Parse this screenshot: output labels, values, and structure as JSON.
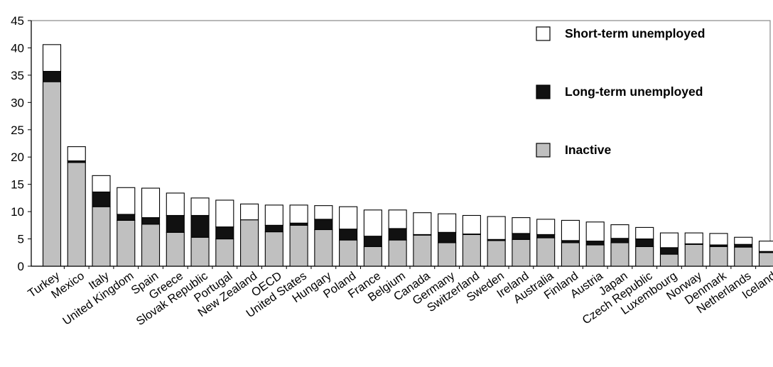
{
  "chart_data": {
    "type": "bar",
    "stacked": true,
    "categories": [
      "Turkey",
      "Mexico",
      "Italy",
      "United Kingdom",
      "Spain",
      "Greece",
      "Slovak Republic",
      "Portugal",
      "New Zealand",
      "OECD",
      "United States",
      "Hungary",
      "Poland",
      "France",
      "Belgium",
      "Canada",
      "Germany",
      "Switzerland",
      "Sweden",
      "Ireland",
      "Australia",
      "Finland",
      "Austria",
      "Japan",
      "Czech Republic",
      "Luxembourg",
      "Norway",
      "Denmark",
      "Netherlands",
      "Iceland"
    ],
    "series": [
      {
        "name": "Inactive",
        "color": "#c0c0c0",
        "values": [
          33.8,
          19.0,
          10.9,
          8.4,
          7.7,
          6.2,
          5.3,
          5.0,
          8.5,
          6.3,
          7.5,
          6.7,
          4.8,
          3.6,
          4.8,
          5.7,
          4.3,
          5.8,
          4.7,
          4.9,
          5.2,
          4.3,
          3.9,
          4.3,
          3.6,
          2.2,
          4.0,
          3.6,
          3.5,
          2.5
        ]
      },
      {
        "name": "Long-term unemployed",
        "color": "#111111",
        "values": [
          1.9,
          0.3,
          2.7,
          1.1,
          1.2,
          3.1,
          4.0,
          2.2,
          0.0,
          1.2,
          0.4,
          1.9,
          2.0,
          1.9,
          2.1,
          0.1,
          1.9,
          0.1,
          0.2,
          1.1,
          0.6,
          0.4,
          0.7,
          0.8,
          1.4,
          1.2,
          0.1,
          0.3,
          0.5,
          0.2
        ]
      },
      {
        "name": "Short-term unemployed",
        "color": "#ffffff",
        "values": [
          4.9,
          2.6,
          3.0,
          4.9,
          5.4,
          4.1,
          3.2,
          4.9,
          2.9,
          3.7,
          3.3,
          2.5,
          4.1,
          4.8,
          3.4,
          4.0,
          3.4,
          3.4,
          4.2,
          2.9,
          2.8,
          3.7,
          3.5,
          2.5,
          2.1,
          2.7,
          2.0,
          2.1,
          1.3,
          1.9
        ]
      }
    ],
    "ylim": [
      0,
      45
    ],
    "yticks": [
      "0",
      "5",
      "10",
      "15",
      "20",
      "25",
      "30",
      "35",
      "40",
      "45"
    ],
    "legend": {
      "position": "top-right",
      "order": [
        "Short-term unemployed",
        "Long-term unemployed",
        "Inactive"
      ]
    },
    "grid": false
  }
}
